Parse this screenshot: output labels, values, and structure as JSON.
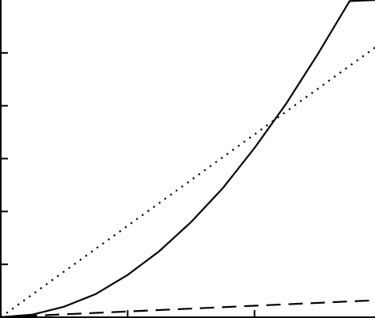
{
  "chart_data": {
    "type": "line",
    "title": "",
    "xlabel": "",
    "ylabel": "",
    "xlim": [
      0,
      2.95
    ],
    "ylim": [
      0,
      6
    ],
    "x_ticks": [
      1,
      2
    ],
    "y_ticks": [
      1,
      2,
      3,
      4,
      5
    ],
    "grid": false,
    "legend": "none",
    "series": [
      {
        "style": "solid",
        "color": "#000000",
        "x": [
          0,
          0.25,
          0.5,
          0.75,
          1.0,
          1.25,
          1.5,
          1.75,
          2.0,
          2.25,
          2.5,
          2.75,
          2.95
        ],
        "y": [
          0,
          0.05,
          0.2,
          0.44,
          0.8,
          1.25,
          1.8,
          2.44,
          3.2,
          4.04,
          4.98,
          5.98,
          6.0
        ]
      },
      {
        "style": "dotted",
        "color": "#000000",
        "x": [
          0,
          2.95
        ],
        "y": [
          0,
          5.1
        ]
      },
      {
        "style": "dashed",
        "color": "#000000",
        "x": [
          0,
          2.95
        ],
        "y": [
          0,
          0.32
        ]
      }
    ]
  }
}
